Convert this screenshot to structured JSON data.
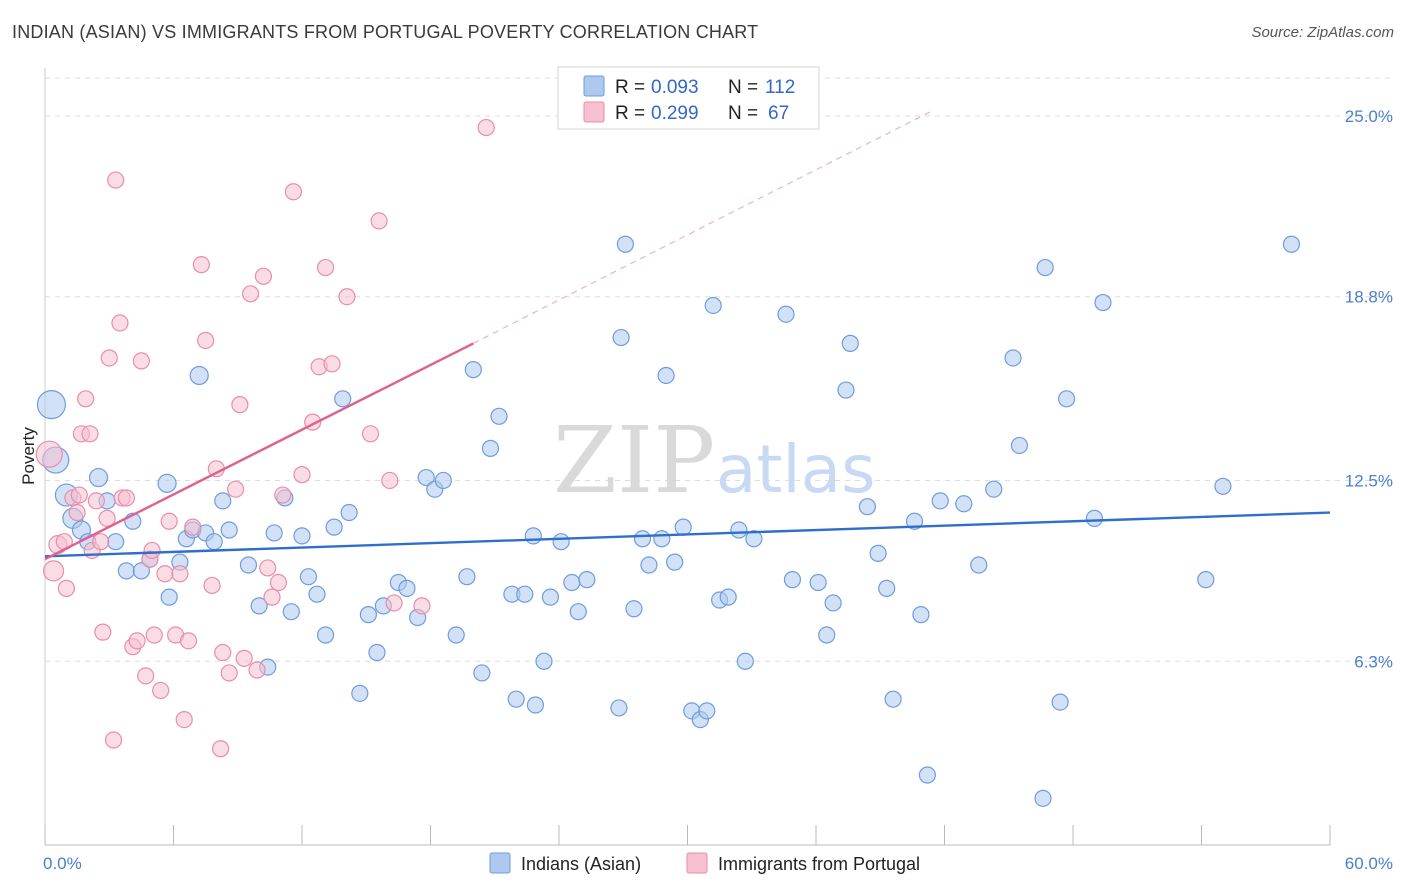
{
  "title": "INDIAN (ASIAN) VS IMMIGRANTS FROM PORTUGAL POVERTY CORRELATION CHART",
  "source": "Source: ZipAtlas.com",
  "watermark": {
    "zip": "ZIP",
    "atlas": "atlas"
  },
  "colors": {
    "blue_fill": "#aec8ef",
    "blue_stroke": "#6d9de0",
    "blue_line": "#2f6fcc",
    "pink_fill": "#f6c0d0",
    "pink_stroke": "#e88eaa",
    "pink_line": "#e06090",
    "grid": "#dddddd",
    "axis_label": "#4a7fcf"
  },
  "legend": {
    "rows": [
      {
        "r_label": "R =",
        "r_value": "0.093",
        "n_label": "N =",
        "n_value": "112"
      },
      {
        "r_label": "R =",
        "r_value": "0.299",
        "n_label": "N =",
        "n_value": "67"
      }
    ]
  },
  "bottom_legend": {
    "series1": "Indians (Asian)",
    "series2": "Immigrants from Portugal"
  },
  "chart_data": {
    "type": "scatter",
    "xlabel": "",
    "ylabel": "Poverty",
    "xlim": [
      0,
      60
    ],
    "ylim": [
      0,
      26.3
    ],
    "x_tick_labels": [
      {
        "value": 0,
        "label": "0.0%"
      },
      {
        "value": 60,
        "label": "60.0%"
      }
    ],
    "y_ticks": [
      {
        "value": 6.3,
        "label": "6.3%"
      },
      {
        "value": 12.5,
        "label": "12.5%"
      },
      {
        "value": 18.8,
        "label": "18.8%"
      },
      {
        "value": 25.0,
        "label": "25.0%"
      }
    ],
    "series": [
      {
        "name": "Indians (Asian)",
        "color": "blue",
        "trend": {
          "x": [
            0,
            60
          ],
          "y": [
            9.9,
            11.4
          ],
          "style": "solid"
        },
        "points": [
          [
            0.3,
            15.1,
            14
          ],
          [
            0.5,
            13.2,
            13
          ],
          [
            1.0,
            12.0,
            11
          ],
          [
            1.3,
            11.2,
            10
          ],
          [
            1.7,
            10.8,
            9
          ],
          [
            2.0,
            10.4,
            8
          ],
          [
            2.5,
            12.6,
            9
          ],
          [
            2.9,
            11.8,
            8
          ],
          [
            3.3,
            10.4,
            8
          ],
          [
            3.8,
            9.4,
            8
          ],
          [
            4.1,
            11.1,
            8
          ],
          [
            4.5,
            9.4,
            8
          ],
          [
            4.9,
            9.8,
            8
          ],
          [
            5.7,
            12.4,
            9
          ],
          [
            5.8,
            8.5,
            8
          ],
          [
            6.3,
            9.7,
            8
          ],
          [
            6.6,
            10.5,
            8
          ],
          [
            6.9,
            10.8,
            8
          ],
          [
            7.2,
            16.1,
            9
          ],
          [
            7.5,
            10.7,
            8
          ],
          [
            7.9,
            10.4,
            8
          ],
          [
            8.3,
            11.8,
            8
          ],
          [
            8.6,
            10.8,
            8
          ],
          [
            9.5,
            9.6,
            8
          ],
          [
            10.0,
            8.2,
            8
          ],
          [
            10.4,
            6.1,
            8
          ],
          [
            10.7,
            10.7,
            8
          ],
          [
            11.2,
            11.9,
            8
          ],
          [
            11.5,
            8.0,
            8
          ],
          [
            12.0,
            10.6,
            8
          ],
          [
            12.3,
            9.2,
            8
          ],
          [
            12.7,
            8.6,
            8
          ],
          [
            13.1,
            7.2,
            8
          ],
          [
            13.5,
            10.9,
            8
          ],
          [
            13.9,
            15.3,
            8
          ],
          [
            14.2,
            11.4,
            8
          ],
          [
            14.7,
            5.2,
            8
          ],
          [
            15.1,
            7.9,
            8
          ],
          [
            15.5,
            6.6,
            8
          ],
          [
            15.8,
            8.2,
            8
          ],
          [
            16.5,
            9.0,
            8
          ],
          [
            16.9,
            8.8,
            8
          ],
          [
            17.4,
            7.8,
            8
          ],
          [
            17.8,
            12.6,
            8
          ],
          [
            18.2,
            12.2,
            8
          ],
          [
            18.6,
            12.5,
            8
          ],
          [
            19.2,
            7.2,
            8
          ],
          [
            19.7,
            9.2,
            8
          ],
          [
            20.0,
            16.3,
            8
          ],
          [
            20.4,
            5.9,
            8
          ],
          [
            20.8,
            13.6,
            8
          ],
          [
            21.2,
            14.7,
            8
          ],
          [
            21.8,
            8.6,
            8
          ],
          [
            22.0,
            5.0,
            8
          ],
          [
            22.4,
            8.6,
            8
          ],
          [
            22.8,
            10.6,
            8
          ],
          [
            22.9,
            4.8,
            8
          ],
          [
            23.3,
            6.3,
            8
          ],
          [
            23.6,
            8.5,
            8
          ],
          [
            24.1,
            10.4,
            8
          ],
          [
            24.6,
            9.0,
            8
          ],
          [
            24.9,
            8.0,
            8
          ],
          [
            25.3,
            9.1,
            8
          ],
          [
            26.8,
            4.7,
            8
          ],
          [
            26.9,
            17.4,
            8
          ],
          [
            27.1,
            20.6,
            8
          ],
          [
            27.5,
            8.1,
            8
          ],
          [
            27.9,
            10.5,
            8
          ],
          [
            28.2,
            9.6,
            8
          ],
          [
            28.8,
            10.5,
            8
          ],
          [
            29.0,
            16.1,
            8
          ],
          [
            29.4,
            9.7,
            8
          ],
          [
            29.8,
            10.9,
            8
          ],
          [
            30.2,
            4.6,
            8
          ],
          [
            30.6,
            4.3,
            8
          ],
          [
            30.9,
            4.6,
            8
          ],
          [
            31.2,
            18.5,
            8
          ],
          [
            31.5,
            8.4,
            8
          ],
          [
            31.9,
            8.5,
            8
          ],
          [
            32.4,
            10.8,
            8
          ],
          [
            32.7,
            6.3,
            8
          ],
          [
            33.1,
            10.5,
            8
          ],
          [
            34.6,
            18.2,
            8
          ],
          [
            34.9,
            9.1,
            8
          ],
          [
            36.1,
            9.0,
            8
          ],
          [
            36.5,
            7.2,
            8
          ],
          [
            36.8,
            8.3,
            8
          ],
          [
            37.4,
            15.6,
            8
          ],
          [
            37.6,
            17.2,
            8
          ],
          [
            38.4,
            11.6,
            8
          ],
          [
            38.9,
            10.0,
            8
          ],
          [
            39.3,
            8.8,
            8
          ],
          [
            39.6,
            5.0,
            8
          ],
          [
            40.6,
            11.1,
            8
          ],
          [
            40.9,
            7.9,
            8
          ],
          [
            41.2,
            2.4,
            8
          ],
          [
            41.8,
            11.8,
            8
          ],
          [
            42.9,
            11.7,
            8
          ],
          [
            43.6,
            9.6,
            8
          ],
          [
            44.3,
            12.2,
            8
          ],
          [
            45.2,
            16.7,
            8
          ],
          [
            45.5,
            13.7,
            8
          ],
          [
            46.6,
            1.6,
            8
          ],
          [
            46.7,
            19.8,
            8
          ],
          [
            47.4,
            4.9,
            8
          ],
          [
            47.7,
            15.3,
            8
          ],
          [
            49.0,
            11.2,
            8
          ],
          [
            49.4,
            18.6,
            8
          ],
          [
            54.2,
            9.1,
            8
          ],
          [
            55.0,
            12.3,
            8
          ],
          [
            58.2,
            20.6,
            8
          ]
        ]
      },
      {
        "name": "Immigrants from Portugal",
        "color": "pink",
        "trend": {
          "x": [
            0,
            20
          ],
          "y": [
            9.8,
            17.2
          ],
          "style": "solid",
          "dash_extension": {
            "x": [
              20,
              41.5
            ],
            "y": [
              17.2,
              25.2
            ]
          }
        },
        "points": [
          [
            0.2,
            13.4,
            13
          ],
          [
            0.4,
            9.4,
            10
          ],
          [
            0.6,
            10.3,
            9
          ],
          [
            0.9,
            10.4,
            8
          ],
          [
            1.0,
            8.8,
            8
          ],
          [
            1.3,
            11.9,
            8
          ],
          [
            1.5,
            11.4,
            8
          ],
          [
            1.6,
            12.0,
            8
          ],
          [
            1.7,
            14.1,
            8
          ],
          [
            1.9,
            15.3,
            8
          ],
          [
            2.1,
            14.1,
            8
          ],
          [
            2.2,
            10.1,
            8
          ],
          [
            2.4,
            11.8,
            8
          ],
          [
            2.6,
            10.4,
            8
          ],
          [
            2.7,
            7.3,
            8
          ],
          [
            2.9,
            11.2,
            8
          ],
          [
            3.0,
            16.7,
            8
          ],
          [
            3.3,
            22.8,
            8
          ],
          [
            3.5,
            17.9,
            8
          ],
          [
            3.6,
            11.9,
            8
          ],
          [
            3.8,
            11.9,
            8
          ],
          [
            4.1,
            6.8,
            8
          ],
          [
            4.3,
            7.0,
            8
          ],
          [
            4.5,
            16.6,
            8
          ],
          [
            4.7,
            5.8,
            8
          ],
          [
            4.9,
            9.8,
            8
          ],
          [
            5.0,
            10.1,
            8
          ],
          [
            5.1,
            7.2,
            8
          ],
          [
            5.4,
            5.3,
            8
          ],
          [
            5.6,
            9.3,
            8
          ],
          [
            5.8,
            11.1,
            8
          ],
          [
            6.1,
            7.2,
            8
          ],
          [
            6.3,
            9.3,
            8
          ],
          [
            6.5,
            4.3,
            8
          ],
          [
            6.7,
            7.0,
            8
          ],
          [
            6.9,
            10.9,
            8
          ],
          [
            7.3,
            19.9,
            8
          ],
          [
            7.5,
            17.3,
            8
          ],
          [
            7.8,
            8.9,
            8
          ],
          [
            8.0,
            12.9,
            8
          ],
          [
            8.2,
            3.3,
            8
          ],
          [
            8.3,
            6.6,
            8
          ],
          [
            8.6,
            5.9,
            8
          ],
          [
            8.9,
            12.2,
            8
          ],
          [
            9.1,
            15.1,
            8
          ],
          [
            9.3,
            6.4,
            8
          ],
          [
            9.6,
            18.9,
            8
          ],
          [
            9.9,
            6.0,
            8
          ],
          [
            10.2,
            19.5,
            8
          ],
          [
            10.4,
            9.5,
            8
          ],
          [
            10.6,
            8.5,
            8
          ],
          [
            10.9,
            9.0,
            8
          ],
          [
            11.1,
            12.0,
            8
          ],
          [
            11.6,
            22.4,
            8
          ],
          [
            12.0,
            12.7,
            8
          ],
          [
            12.5,
            14.5,
            8
          ],
          [
            12.8,
            16.4,
            8
          ],
          [
            13.1,
            19.8,
            8
          ],
          [
            13.4,
            16.5,
            8
          ],
          [
            14.1,
            18.8,
            8
          ],
          [
            15.2,
            14.1,
            8
          ],
          [
            15.6,
            21.4,
            8
          ],
          [
            16.1,
            12.5,
            8
          ],
          [
            16.3,
            8.3,
            8
          ],
          [
            17.6,
            8.2,
            8
          ],
          [
            20.6,
            24.6,
            8
          ],
          [
            3.2,
            3.6,
            8
          ]
        ]
      }
    ]
  }
}
